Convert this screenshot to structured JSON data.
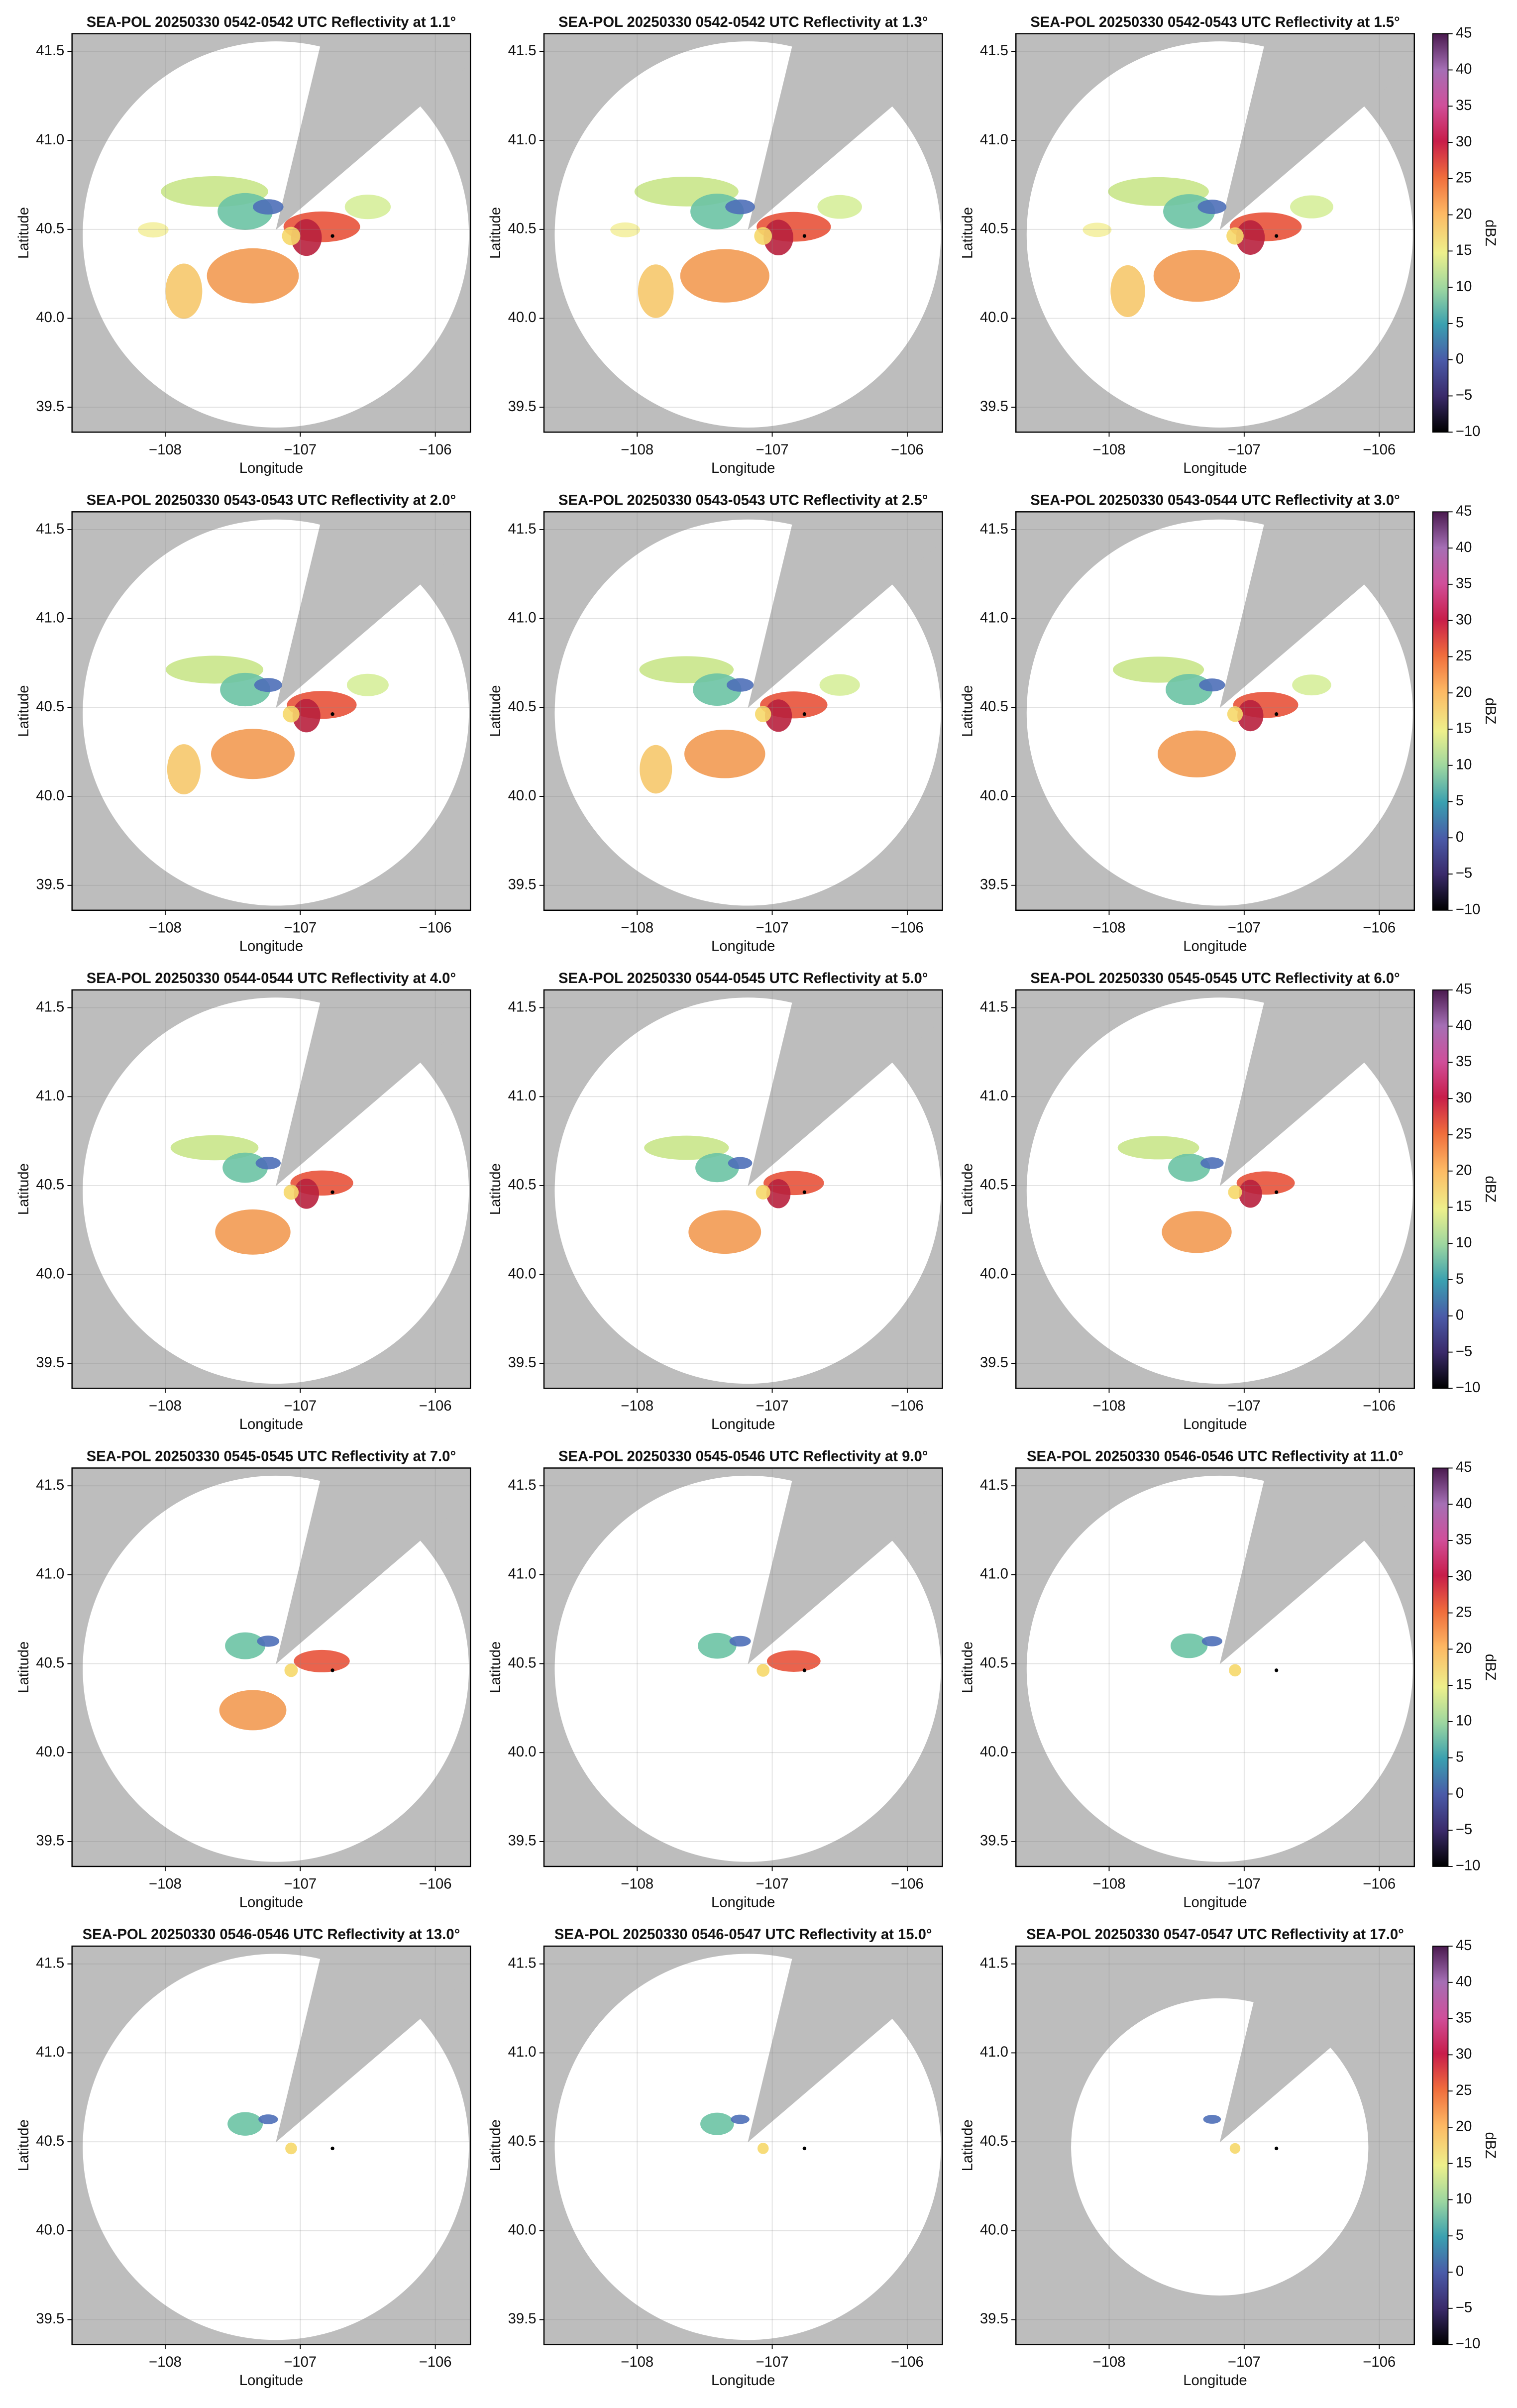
{
  "chart_data": [
    {
      "type": "ppi",
      "title": "SEA-POL 20250330 0542-0542 UTC Reflectivity at 1.1°",
      "xlabel": "Longitude",
      "ylabel": "Latitude",
      "xlim": [
        -108.69,
        -105.74
      ],
      "ylim": [
        39.36,
        41.6
      ],
      "xticks": [
        {
          "value": -108,
          "label": "−108"
        },
        {
          "value": -107,
          "label": "−107"
        },
        {
          "value": -106,
          "label": "−106"
        }
      ],
      "yticks": [
        39.5,
        {
          "value": 40,
          "label": "40.0"
        },
        40.5,
        {
          "value": 41,
          "label": "41.0"
        },
        41.5
      ],
      "grid": true
    },
    {
      "type": "ppi",
      "title": "SEA-POL 20250330 0542-0542 UTC Reflectivity at 1.3°",
      "xlabel": "Longitude",
      "ylabel": "Latitude",
      "xlim": [
        -108.69,
        -105.74
      ],
      "ylim": [
        39.36,
        41.6
      ],
      "xticks": [
        {
          "value": -108,
          "label": "−108"
        },
        {
          "value": -107,
          "label": "−107"
        },
        {
          "value": -106,
          "label": "−106"
        }
      ],
      "yticks": [
        39.5,
        {
          "value": 40,
          "label": "40.0"
        },
        40.5,
        {
          "value": 41,
          "label": "41.0"
        },
        41.5
      ],
      "grid": true
    },
    {
      "type": "ppi",
      "title": "SEA-POL 20250330 0542-0543 UTC Reflectivity at 1.5°",
      "xlabel": "Longitude",
      "ylabel": "Latitude",
      "xlim": [
        -108.69,
        -105.74
      ],
      "ylim": [
        39.36,
        41.6
      ],
      "xticks": [
        {
          "value": -108,
          "label": "−108"
        },
        {
          "value": -107,
          "label": "−107"
        },
        {
          "value": -106,
          "label": "−106"
        }
      ],
      "yticks": [
        39.5,
        {
          "value": 40,
          "label": "40.0"
        },
        40.5,
        {
          "value": 41,
          "label": "41.0"
        },
        41.5
      ],
      "grid": true,
      "colorbar": {
        "label": "dBZ",
        "lim": [
          -10,
          45
        ],
        "ticks": [
          {
            "value": -10,
            "label": "−10"
          },
          {
            "value": -5,
            "label": "−5"
          },
          0,
          5,
          10,
          15,
          20,
          25,
          30,
          35,
          40,
          45
        ]
      }
    },
    {
      "type": "ppi",
      "title": "SEA-POL 20250330 0543-0543 UTC Reflectivity at 2.0°",
      "xlabel": "Longitude",
      "ylabel": "Latitude",
      "xlim": [
        -108.69,
        -105.74
      ],
      "ylim": [
        39.36,
        41.6
      ],
      "xticks": [
        {
          "value": -108,
          "label": "−108"
        },
        {
          "value": -107,
          "label": "−107"
        },
        {
          "value": -106,
          "label": "−106"
        }
      ],
      "yticks": [
        39.5,
        {
          "value": 40,
          "label": "40.0"
        },
        40.5,
        {
          "value": 41,
          "label": "41.0"
        },
        41.5
      ],
      "grid": true
    },
    {
      "type": "ppi",
      "title": "SEA-POL 20250330 0543-0543 UTC Reflectivity at 2.5°",
      "xlabel": "Longitude",
      "ylabel": "Latitude",
      "xlim": [
        -108.69,
        -105.74
      ],
      "ylim": [
        39.36,
        41.6
      ],
      "xticks": [
        {
          "value": -108,
          "label": "−108"
        },
        {
          "value": -107,
          "label": "−107"
        },
        {
          "value": -106,
          "label": "−106"
        }
      ],
      "yticks": [
        39.5,
        {
          "value": 40,
          "label": "40.0"
        },
        40.5,
        {
          "value": 41,
          "label": "41.0"
        },
        41.5
      ],
      "grid": true
    },
    {
      "type": "ppi",
      "title": "SEA-POL 20250330 0543-0544 UTC Reflectivity at 3.0°",
      "xlabel": "Longitude",
      "ylabel": "Latitude",
      "xlim": [
        -108.69,
        -105.74
      ],
      "ylim": [
        39.36,
        41.6
      ],
      "xticks": [
        {
          "value": -108,
          "label": "−108"
        },
        {
          "value": -107,
          "label": "−107"
        },
        {
          "value": -106,
          "label": "−106"
        }
      ],
      "yticks": [
        39.5,
        {
          "value": 40,
          "label": "40.0"
        },
        40.5,
        {
          "value": 41,
          "label": "41.0"
        },
        41.5
      ],
      "grid": true,
      "colorbar": {
        "label": "dBZ",
        "lim": [
          -10,
          45
        ],
        "ticks": [
          {
            "value": -10,
            "label": "−10"
          },
          {
            "value": -5,
            "label": "−5"
          },
          0,
          5,
          10,
          15,
          20,
          25,
          30,
          35,
          40,
          45
        ]
      }
    },
    {
      "type": "ppi",
      "title": "SEA-POL 20250330 0544-0544 UTC Reflectivity at 4.0°",
      "xlabel": "Longitude",
      "ylabel": "Latitude",
      "xlim": [
        -108.69,
        -105.74
      ],
      "ylim": [
        39.36,
        41.6
      ],
      "xticks": [
        {
          "value": -108,
          "label": "−108"
        },
        {
          "value": -107,
          "label": "−107"
        },
        {
          "value": -106,
          "label": "−106"
        }
      ],
      "yticks": [
        39.5,
        {
          "value": 40,
          "label": "40.0"
        },
        40.5,
        {
          "value": 41,
          "label": "41.0"
        },
        41.5
      ],
      "grid": true
    },
    {
      "type": "ppi",
      "title": "SEA-POL 20250330 0544-0545 UTC Reflectivity at 5.0°",
      "xlabel": "Longitude",
      "ylabel": "Latitude",
      "xlim": [
        -108.69,
        -105.74
      ],
      "ylim": [
        39.36,
        41.6
      ],
      "xticks": [
        {
          "value": -108,
          "label": "−108"
        },
        {
          "value": -107,
          "label": "−107"
        },
        {
          "value": -106,
          "label": "−106"
        }
      ],
      "yticks": [
        39.5,
        {
          "value": 40,
          "label": "40.0"
        },
        40.5,
        {
          "value": 41,
          "label": "41.0"
        },
        41.5
      ],
      "grid": true
    },
    {
      "type": "ppi",
      "title": "SEA-POL 20250330 0545-0545 UTC Reflectivity at 6.0°",
      "xlabel": "Longitude",
      "ylabel": "Latitude",
      "xlim": [
        -108.69,
        -105.74
      ],
      "ylim": [
        39.36,
        41.6
      ],
      "xticks": [
        {
          "value": -108,
          "label": "−108"
        },
        {
          "value": -107,
          "label": "−107"
        },
        {
          "value": -106,
          "label": "−106"
        }
      ],
      "yticks": [
        39.5,
        {
          "value": 40,
          "label": "40.0"
        },
        40.5,
        {
          "value": 41,
          "label": "41.0"
        },
        41.5
      ],
      "grid": true,
      "colorbar": {
        "label": "dBZ",
        "lim": [
          -10,
          45
        ],
        "ticks": [
          {
            "value": -10,
            "label": "−10"
          },
          {
            "value": -5,
            "label": "−5"
          },
          0,
          5,
          10,
          15,
          20,
          25,
          30,
          35,
          40,
          45
        ]
      }
    },
    {
      "type": "ppi",
      "title": "SEA-POL 20250330 0545-0545 UTC Reflectivity at 7.0°",
      "xlabel": "Longitude",
      "ylabel": "Latitude",
      "xlim": [
        -108.69,
        -105.74
      ],
      "ylim": [
        39.36,
        41.6
      ],
      "xticks": [
        {
          "value": -108,
          "label": "−108"
        },
        {
          "value": -107,
          "label": "−107"
        },
        {
          "value": -106,
          "label": "−106"
        }
      ],
      "yticks": [
        39.5,
        {
          "value": 40,
          "label": "40.0"
        },
        40.5,
        {
          "value": 41,
          "label": "41.0"
        },
        41.5
      ],
      "grid": true
    },
    {
      "type": "ppi",
      "title": "SEA-POL 20250330 0545-0546 UTC Reflectivity at 9.0°",
      "xlabel": "Longitude",
      "ylabel": "Latitude",
      "xlim": [
        -108.69,
        -105.74
      ],
      "ylim": [
        39.36,
        41.6
      ],
      "xticks": [
        {
          "value": -108,
          "label": "−108"
        },
        {
          "value": -107,
          "label": "−107"
        },
        {
          "value": -106,
          "label": "−106"
        }
      ],
      "yticks": [
        39.5,
        {
          "value": 40,
          "label": "40.0"
        },
        40.5,
        {
          "value": 41,
          "label": "41.0"
        },
        41.5
      ],
      "grid": true
    },
    {
      "type": "ppi",
      "title": "SEA-POL 20250330 0546-0546 UTC Reflectivity at 11.0°",
      "xlabel": "Longitude",
      "ylabel": "Latitude",
      "xlim": [
        -108.69,
        -105.74
      ],
      "ylim": [
        39.36,
        41.6
      ],
      "xticks": [
        {
          "value": -108,
          "label": "−108"
        },
        {
          "value": -107,
          "label": "−107"
        },
        {
          "value": -106,
          "label": "−106"
        }
      ],
      "yticks": [
        39.5,
        {
          "value": 40,
          "label": "40.0"
        },
        40.5,
        {
          "value": 41,
          "label": "41.0"
        },
        41.5
      ],
      "grid": true,
      "colorbar": {
        "label": "dBZ",
        "lim": [
          -10,
          45
        ],
        "ticks": [
          {
            "value": -10,
            "label": "−10"
          },
          {
            "value": -5,
            "label": "−5"
          },
          0,
          5,
          10,
          15,
          20,
          25,
          30,
          35,
          40,
          45
        ]
      }
    },
    {
      "type": "ppi",
      "title": "SEA-POL 20250330 0546-0546 UTC Reflectivity at 13.0°",
      "xlabel": "Longitude",
      "ylabel": "Latitude",
      "xlim": [
        -108.69,
        -105.74
      ],
      "ylim": [
        39.36,
        41.6
      ],
      "xticks": [
        {
          "value": -108,
          "label": "−108"
        },
        {
          "value": -107,
          "label": "−107"
        },
        {
          "value": -106,
          "label": "−106"
        }
      ],
      "yticks": [
        39.5,
        {
          "value": 40,
          "label": "40.0"
        },
        40.5,
        {
          "value": 41,
          "label": "41.0"
        },
        41.5
      ],
      "grid": true
    },
    {
      "type": "ppi",
      "title": "SEA-POL 20250330 0546-0547 UTC Reflectivity at 15.0°",
      "xlabel": "Longitude",
      "ylabel": "Latitude",
      "xlim": [
        -108.69,
        -105.74
      ],
      "ylim": [
        39.36,
        41.6
      ],
      "xticks": [
        {
          "value": -108,
          "label": "−108"
        },
        {
          "value": -107,
          "label": "−107"
        },
        {
          "value": -106,
          "label": "−106"
        }
      ],
      "yticks": [
        39.5,
        {
          "value": 40,
          "label": "40.0"
        },
        40.5,
        {
          "value": 41,
          "label": "41.0"
        },
        41.5
      ],
      "grid": true
    },
    {
      "type": "ppi",
      "title": "SEA-POL 20250330 0547-0547 UTC Reflectivity at 17.0°",
      "xlabel": "Longitude",
      "ylabel": "Latitude",
      "xlim": [
        -108.69,
        -105.74
      ],
      "ylim": [
        39.36,
        41.6
      ],
      "xticks": [
        {
          "value": -108,
          "label": "−108"
        },
        {
          "value": -107,
          "label": "−107"
        },
        {
          "value": -106,
          "label": "−106"
        }
      ],
      "yticks": [
        39.5,
        {
          "value": 40,
          "label": "40.0"
        },
        40.5,
        {
          "value": 41,
          "label": "41.0"
        },
        41.5
      ],
      "grid": true,
      "colorbar": {
        "label": "dBZ",
        "lim": [
          -10,
          45
        ],
        "ticks": [
          {
            "value": -10,
            "label": "−10"
          },
          {
            "value": -5,
            "label": "−5"
          },
          0,
          5,
          10,
          15,
          20,
          25,
          30,
          35,
          40,
          45
        ]
      }
    }
  ]
}
